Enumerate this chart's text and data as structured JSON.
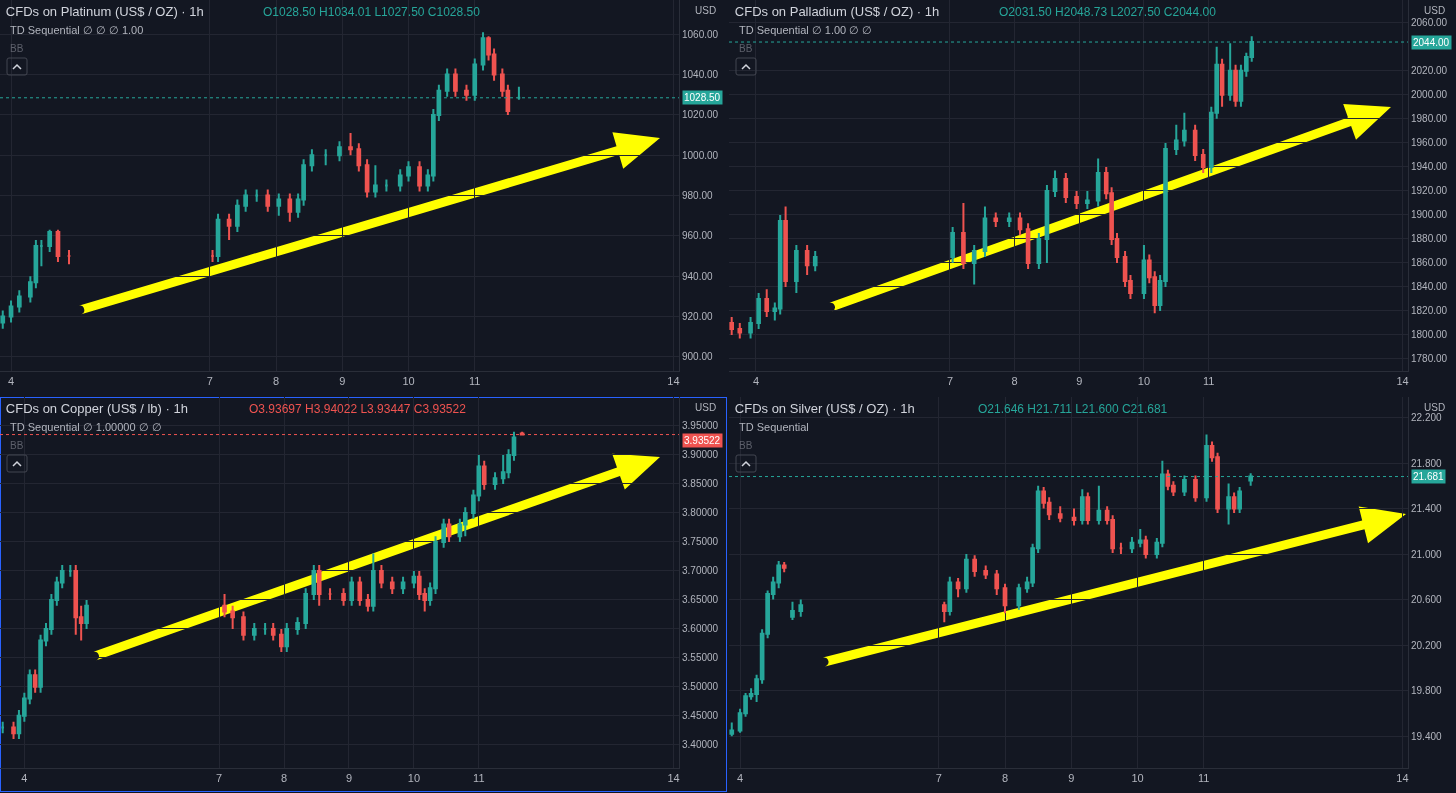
{
  "chart_data": [
    {
      "type": "candlestick",
      "title": "CFDs on Platinum (US$ / OZ) · 1h",
      "grid": true,
      "annotations": [
        "O1028.50 H1034.01 L1027.50 C1028.50",
        "TD Sequential ∅ ∅ ∅ 1.00",
        "BB",
        "USD"
      ],
      "x": [
        "--11-03T21:00",
        "--11-04T00:00",
        "--11-04T03:00",
        "--11-04T07:00",
        "--11-04T09:00",
        "--11-04T11:00",
        "--11-04T14:00",
        "--11-04T17:00",
        "--11-04T21:00",
        "--11-07T01:00",
        "--11-07T03:00",
        "--11-07T07:00",
        "--11-07T10:00",
        "--11-07T13:00",
        "--11-07T17:00",
        "--11-07T21:00",
        "--11-08T01:00",
        "--11-08T05:00",
        "--11-08T08:00",
        "--11-08T10:00",
        "--11-08T13:00",
        "--11-08T18:00",
        "--11-08T23:00",
        "--11-09T03:00",
        "--11-09T06:00",
        "--11-09T09:00",
        "--11-09T12:00",
        "--11-09T16:00",
        "--11-09T21:00",
        "--11-10T00:00",
        "--11-10T04:00",
        "--11-10T07:00",
        "--11-10T09:00",
        "--11-10T11:00",
        "--11-10T14:00",
        "--11-10T17:00",
        "--11-10T21:00",
        "--11-11T00:00",
        "--11-11T03:00",
        "--11-11T05:00",
        "--11-11T07:00",
        "--11-11T10:00",
        "--11-11T12:00",
        "--11-11T16:00"
      ],
      "ohlc": [
        [
          917,
          923,
          914,
          920
        ],
        [
          920,
          928,
          917,
          925
        ],
        [
          925,
          933,
          922,
          930
        ],
        [
          930,
          940,
          927,
          937
        ],
        [
          937,
          958,
          934,
          955
        ],
        [
          955,
          958,
          945,
          955
        ],
        [
          955,
          963,
          952,
          962
        ],
        [
          962,
          963,
          947,
          950
        ],
        [
          950,
          953,
          946,
          950
        ],
        [
          950,
          953,
          947,
          950
        ],
        [
          950,
          971,
          947,
          968
        ],
        [
          968,
          971,
          958,
          965
        ],
        [
          965,
          978,
          962,
          975
        ],
        [
          975,
          983,
          972,
          980
        ],
        [
          980,
          983,
          977,
          980
        ],
        [
          980,
          983,
          972,
          975
        ],
        [
          975,
          981,
          970,
          978
        ],
        [
          978,
          981,
          967,
          972
        ],
        [
          972,
          981,
          969,
          978
        ],
        [
          978,
          998,
          975,
          995
        ],
        [
          995,
          1003,
          992,
          1000
        ],
        [
          1000,
          1003,
          995,
          1000
        ],
        [
          1000,
          1007,
          997,
          1004
        ],
        [
          1004,
          1011,
          1000,
          1003
        ],
        [
          1003,
          1006,
          992,
          995
        ],
        [
          995,
          998,
          979,
          982
        ],
        [
          982,
          995,
          979,
          985
        ],
        [
          985,
          988,
          982,
          985
        ],
        [
          985,
          993,
          982,
          990
        ],
        [
          990,
          997,
          987,
          994
        ],
        [
          994,
          997,
          982,
          985
        ],
        [
          985,
          993,
          982,
          990
        ],
        [
          990,
          1023,
          987,
          1020
        ],
        [
          1020,
          1035,
          1017,
          1032
        ],
        [
          1032,
          1043,
          1029,
          1040
        ],
        [
          1040,
          1043,
          1029,
          1032
        ],
        [
          1032,
          1035,
          1027,
          1030
        ],
        [
          1030,
          1048,
          1027,
          1045
        ],
        [
          1045,
          1061,
          1042,
          1058
        ],
        [
          1058,
          1059,
          1047,
          1050
        ],
        [
          1050,
          1053,
          1037,
          1040
        ],
        [
          1040,
          1043,
          1029,
          1032
        ],
        [
          1032,
          1035,
          1020,
          1022
        ],
        [
          1028.5,
          1034.01,
          1027.5,
          1028.5
        ]
      ],
      "xlim": [
        "--11-03T20:00",
        "--11-14T02:00"
      ],
      "xticks": [
        {
          "value": "--11-04",
          "label": "4"
        },
        {
          "value": "--11-07",
          "label": "7"
        },
        {
          "value": "--11-08",
          "label": "8"
        },
        {
          "value": "--11-09",
          "label": "9"
        },
        {
          "value": "--11-10",
          "label": "10"
        },
        {
          "value": "--11-11",
          "label": "11"
        },
        {
          "value": "--11-14",
          "label": "14"
        }
      ],
      "ylim": [
        893,
        1077
      ],
      "yticks": [
        {
          "value": 900,
          "label": "900.00"
        },
        {
          "value": 920,
          "label": "920.00"
        },
        {
          "value": 940,
          "label": "940.00"
        },
        {
          "value": 960,
          "label": "960.00"
        },
        {
          "value": 980,
          "label": "980.00"
        },
        {
          "value": 1000,
          "label": "1000.00"
        },
        {
          "value": 1020,
          "label": "1020.00"
        },
        {
          "value": 1040,
          "label": "1040.00"
        },
        {
          "value": 1060,
          "label": "1060.00"
        }
      ],
      "ref_lines": [
        {
          "axis": "y",
          "value": 1028.5,
          "label": "1028.50",
          "color": "#26a69a",
          "line_style": "dotted"
        }
      ]
    },
    {
      "type": "candlestick",
      "title": "CFDs on Palladium (US$ / OZ) · 1h",
      "grid": true,
      "annotations": [
        "O2031.50 H2048.73 L2027.50 C2044.00",
        "TD Sequential ∅ 1.00 ∅ ∅",
        "BB",
        "USD"
      ],
      "x": [
        "--11-03T15:00",
        "--11-03T18:00",
        "--11-03T22:00",
        "--11-04T01:00",
        "--11-04T04:00",
        "--11-04T07:00",
        "--11-04T09:00",
        "--11-04T11:00",
        "--11-04T15:00",
        "--11-04T19:00",
        "--11-04T22:00",
        "--11-07T01:00",
        "--11-07T05:00",
        "--11-07T09:00",
        "--11-07T13:00",
        "--11-07T17:00",
        "--11-07T22:00",
        "--11-08T02:00",
        "--11-08T05:00",
        "--11-08T09:00",
        "--11-08T12:00",
        "--11-08T15:00",
        "--11-08T19:00",
        "--11-08T23:00",
        "--11-09T03:00",
        "--11-09T07:00",
        "--11-09T10:00",
        "--11-09T12:00",
        "--11-09T14:00",
        "--11-09T17:00",
        "--11-09T19:00",
        "--11-10T00:00",
        "--11-10T02:00",
        "--11-10T04:00",
        "--11-10T06:00",
        "--11-10T08:00",
        "--11-10T12:00",
        "--11-10T15:00",
        "--11-10T19:00",
        "--11-10T22:00",
        "--11-11T01:00",
        "--11-11T03:00",
        "--11-11T05:00",
        "--11-11T08:00",
        "--11-11T10:00",
        "--11-11T12:00",
        "--11-11T14:00",
        "--11-11T16:00"
      ],
      "ohlc": [
        [
          1810,
          1815,
          1800,
          1805
        ],
        [
          1805,
          1810,
          1797,
          1802
        ],
        [
          1802,
          1815,
          1797,
          1810
        ],
        [
          1810,
          1835,
          1805,
          1830
        ],
        [
          1830,
          1838,
          1815,
          1820
        ],
        [
          1820,
          1827,
          1812,
          1822
        ],
        [
          1822,
          1900,
          1817,
          1895
        ],
        [
          1895,
          1907,
          1840,
          1845
        ],
        [
          1845,
          1875,
          1835,
          1870
        ],
        [
          1870,
          1875,
          1850,
          1858
        ],
        [
          1858,
          1870,
          1853,
          1865
        ],
        [
          1865,
          1890,
          1860,
          1885
        ],
        [
          1885,
          1910,
          1855,
          1860
        ],
        [
          1860,
          1875,
          1842,
          1870
        ],
        [
          1870,
          1907,
          1865,
          1897
        ],
        [
          1897,
          1902,
          1890,
          1895
        ],
        [
          1895,
          1902,
          1890,
          1897
        ],
        [
          1897,
          1902,
          1883,
          1888
        ],
        [
          1888,
          1893,
          1855,
          1860
        ],
        [
          1860,
          1885,
          1855,
          1880
        ],
        [
          1880,
          1925,
          1860,
          1920
        ],
        [
          1920,
          1937,
          1915,
          1930
        ],
        [
          1930,
          1935,
          1910,
          1915
        ],
        [
          1915,
          1920,
          1905,
          1910
        ],
        [
          1910,
          1920,
          1905,
          1912
        ],
        [
          1912,
          1947,
          1907,
          1935
        ],
        [
          1935,
          1940,
          1913,
          1918
        ],
        [
          1918,
          1923,
          1875,
          1880
        ],
        [
          1880,
          1885,
          1860,
          1865
        ],
        [
          1865,
          1870,
          1840,
          1845
        ],
        [
          1845,
          1850,
          1830,
          1835
        ],
        [
          1835,
          1875,
          1830,
          1862
        ],
        [
          1862,
          1867,
          1843,
          1848
        ],
        [
          1848,
          1853,
          1818,
          1825
        ],
        [
          1825,
          1850,
          1820,
          1845
        ],
        [
          1845,
          1960,
          1840,
          1955
        ],
        [
          1955,
          1975,
          1950,
          1962
        ],
        [
          1962,
          1985,
          1957,
          1970
        ],
        [
          1970,
          1975,
          1945,
          1950
        ],
        [
          1950,
          1955,
          1935,
          1940
        ],
        [
          1940,
          1990,
          1935,
          1985
        ],
        [
          1985,
          2040,
          1980,
          2025
        ],
        [
          2025,
          2030,
          1990,
          2000
        ],
        [
          2000,
          2043,
          1995,
          2020
        ],
        [
          2020,
          2025,
          1990,
          1995
        ],
        [
          1995,
          2025,
          1990,
          2020
        ],
        [
          2020,
          2035,
          2015,
          2031.5
        ],
        [
          2031.5,
          2048.73,
          2027.5,
          2044
        ]
      ],
      "xlim": [
        "--11-03T14:00",
        "--11-14T02:00"
      ],
      "xticks": [
        {
          "value": "--11-04",
          "label": "4"
        },
        {
          "value": "--11-07",
          "label": "7"
        },
        {
          "value": "--11-08",
          "label": "8"
        },
        {
          "value": "--11-09",
          "label": "9"
        },
        {
          "value": "--11-10",
          "label": "10"
        },
        {
          "value": "--11-11",
          "label": "11"
        },
        {
          "value": "--11-14",
          "label": "14"
        }
      ],
      "ylim": [
        1770,
        2079
      ],
      "yticks": [
        {
          "value": 1780,
          "label": "1780.00"
        },
        {
          "value": 1800,
          "label": "1800.00"
        },
        {
          "value": 1820,
          "label": "1820.00"
        },
        {
          "value": 1840,
          "label": "1840.00"
        },
        {
          "value": 1860,
          "label": "1860.00"
        },
        {
          "value": 1880,
          "label": "1880.00"
        },
        {
          "value": 1900,
          "label": "1900.00"
        },
        {
          "value": 1920,
          "label": "1920.00"
        },
        {
          "value": 1940,
          "label": "1940.00"
        },
        {
          "value": 1960,
          "label": "1960.00"
        },
        {
          "value": 1980,
          "label": "1980.00"
        },
        {
          "value": 2000,
          "label": "2000.00"
        },
        {
          "value": 2020,
          "label": "2020.00"
        },
        {
          "value": 2060,
          "label": "2060.00"
        }
      ],
      "ref_lines": [
        {
          "axis": "y",
          "value": 2044,
          "label": "2044.00",
          "color": "#26a69a",
          "line_style": "dotted"
        }
      ]
    },
    {
      "type": "candlestick",
      "title": "CFDs on Copper (US$ / lb) · 1h",
      "grid": true,
      "annotations": [
        "O3.93697 H3.94022 L3.93447 C3.93522",
        "TD Sequential ∅ 1.00000 ∅ ∅",
        "BB",
        "USD"
      ],
      "x": [
        "--11-03T16:00",
        "--11-03T20:00",
        "--11-03T22:00",
        "--11-04T00:00",
        "--11-04T02:00",
        "--11-04T04:00",
        "--11-04T06:00",
        "--11-04T08:00",
        "--11-04T10:00",
        "--11-04T12:00",
        "--11-04T14:00",
        "--11-04T17:00",
        "--11-04T19:00",
        "--11-04T21:00",
        "--11-04T23:00",
        "--11-07T02:00",
        "--11-07T05:00",
        "--11-07T09:00",
        "--11-07T13:00",
        "--11-07T17:00",
        "--11-07T20:00",
        "--11-07T23:00",
        "--11-08T01:00",
        "--11-08T05:00",
        "--11-08T08:00",
        "--11-08T11:00",
        "--11-08T13:00",
        "--11-08T17:00",
        "--11-08T22:00",
        "--11-09T01:00",
        "--11-09T04:00",
        "--11-09T07:00",
        "--11-09T09:00",
        "--11-09T12:00",
        "--11-09T16:00",
        "--11-09T20:00",
        "--11-10T00:00",
        "--11-10T02:00",
        "--11-10T04:00",
        "--11-10T06:00",
        "--11-10T08:00",
        "--11-10T11:00",
        "--11-10T13:00",
        "--11-10T17:00",
        "--11-10T19:00",
        "--11-10T22:00",
        "--11-11T00:00",
        "--11-11T02:00",
        "--11-11T06:00",
        "--11-11T09:00",
        "--11-11T11:00",
        "--11-11T13:00",
        "--11-11T16:00"
      ],
      "ohlc": [
        [
          3.43,
          3.44,
          3.42,
          3.43
        ],
        [
          3.43,
          3.44,
          3.41,
          3.42
        ],
        [
          3.42,
          3.46,
          3.41,
          3.45
        ],
        [
          3.45,
          3.49,
          3.44,
          3.48
        ],
        [
          3.48,
          3.53,
          3.47,
          3.52
        ],
        [
          3.52,
          3.53,
          3.49,
          3.5
        ],
        [
          3.5,
          3.59,
          3.49,
          3.58
        ],
        [
          3.58,
          3.61,
          3.57,
          3.6
        ],
        [
          3.6,
          3.66,
          3.59,
          3.65
        ],
        [
          3.65,
          3.69,
          3.64,
          3.68
        ],
        [
          3.68,
          3.71,
          3.67,
          3.7
        ],
        [
          3.7,
          3.71,
          3.69,
          3.7
        ],
        [
          3.7,
          3.71,
          3.59,
          3.62
        ],
        [
          3.62,
          3.64,
          3.58,
          3.61
        ],
        [
          3.61,
          3.65,
          3.6,
          3.64
        ],
        [
          3.64,
          3.66,
          3.62,
          3.63
        ],
        [
          3.63,
          3.64,
          3.6,
          3.62
        ],
        [
          3.62,
          3.63,
          3.58,
          3.59
        ],
        [
          3.59,
          3.61,
          3.58,
          3.6
        ],
        [
          3.6,
          3.61,
          3.59,
          3.6
        ],
        [
          3.6,
          3.61,
          3.58,
          3.59
        ],
        [
          3.59,
          3.6,
          3.56,
          3.57
        ],
        [
          3.57,
          3.61,
          3.56,
          3.6
        ],
        [
          3.6,
          3.62,
          3.59,
          3.61
        ],
        [
          3.61,
          3.67,
          3.6,
          3.66
        ],
        [
          3.66,
          3.71,
          3.65,
          3.7
        ],
        [
          3.7,
          3.71,
          3.64,
          3.66
        ],
        [
          3.66,
          3.67,
          3.65,
          3.66
        ],
        [
          3.66,
          3.67,
          3.64,
          3.65
        ],
        [
          3.65,
          3.69,
          3.64,
          3.68
        ],
        [
          3.68,
          3.69,
          3.64,
          3.65
        ],
        [
          3.65,
          3.66,
          3.63,
          3.64
        ],
        [
          3.64,
          3.73,
          3.63,
          3.7
        ],
        [
          3.7,
          3.71,
          3.67,
          3.68
        ],
        [
          3.68,
          3.69,
          3.66,
          3.67
        ],
        [
          3.67,
          3.69,
          3.66,
          3.68
        ],
        [
          3.68,
          3.7,
          3.67,
          3.69
        ],
        [
          3.69,
          3.7,
          3.65,
          3.66
        ],
        [
          3.66,
          3.67,
          3.63,
          3.65
        ],
        [
          3.65,
          3.68,
          3.64,
          3.67
        ],
        [
          3.67,
          3.76,
          3.66,
          3.75
        ],
        [
          3.75,
          3.79,
          3.74,
          3.78
        ],
        [
          3.78,
          3.79,
          3.75,
          3.76
        ],
        [
          3.76,
          3.79,
          3.75,
          3.78
        ],
        [
          3.78,
          3.81,
          3.76,
          3.8
        ],
        [
          3.8,
          3.84,
          3.79,
          3.83
        ],
        [
          3.83,
          3.9,
          3.82,
          3.88
        ],
        [
          3.88,
          3.89,
          3.84,
          3.85
        ],
        [
          3.85,
          3.87,
          3.84,
          3.86
        ],
        [
          3.86,
          3.9,
          3.85,
          3.87
        ],
        [
          3.87,
          3.91,
          3.86,
          3.9
        ],
        [
          3.9,
          3.94,
          3.89,
          3.93
        ],
        [
          3.93697,
          3.94022,
          3.93447,
          3.93522
        ]
      ],
      "xlim": [
        "--11-03T15:00",
        "--11-14T02:00"
      ],
      "xticks": [
        {
          "value": "--11-04",
          "label": "4"
        },
        {
          "value": "--11-07",
          "label": "7"
        },
        {
          "value": "--11-08",
          "label": "8"
        },
        {
          "value": "--11-09",
          "label": "9"
        },
        {
          "value": "--11-10",
          "label": "10"
        },
        {
          "value": "--11-11",
          "label": "11"
        },
        {
          "value": "--11-14",
          "label": "14"
        }
      ],
      "ylim": [
        3.36,
        4.0
      ],
      "yticks": [
        {
          "value": 3.4,
          "label": "3.40000"
        },
        {
          "value": 3.45,
          "label": "3.45000"
        },
        {
          "value": 3.5,
          "label": "3.50000"
        },
        {
          "value": 3.55,
          "label": "3.55000"
        },
        {
          "value": 3.6,
          "label": "3.60000"
        },
        {
          "value": 3.65,
          "label": "3.65000"
        },
        {
          "value": 3.7,
          "label": "3.70000"
        },
        {
          "value": 3.75,
          "label": "3.75000"
        },
        {
          "value": 3.8,
          "label": "3.80000"
        },
        {
          "value": 3.85,
          "label": "3.85000"
        },
        {
          "value": 3.9,
          "label": "3.90000"
        },
        {
          "value": 3.95,
          "label": "3.95000"
        }
      ],
      "ref_lines": [
        {
          "axis": "y",
          "value": 3.93522,
          "label": "3.93522",
          "color": "#ef5350",
          "line_style": "dotted"
        }
      ]
    },
    {
      "type": "candlestick",
      "title": "CFDs on Silver (US$ / OZ) · 1h",
      "grid": true,
      "annotations": [
        "O21.646 H21.711 L21.600 C21.681",
        "TD Sequential",
        "BB",
        "USD"
      ],
      "x": [
        "--11-03T21:00",
        "--11-04T00:00",
        "--11-04T02:00",
        "--11-04T04:00",
        "--11-04T06:00",
        "--11-04T08:00",
        "--11-04T10:00",
        "--11-04T12:00",
        "--11-04T14:00",
        "--11-04T16:00",
        "--11-04T19:00",
        "--11-04T22:00",
        "--11-07T02:00",
        "--11-07T04:00",
        "--11-07T07:00",
        "--11-07T10:00",
        "--11-07T13:00",
        "--11-07T17:00",
        "--11-07T21:00",
        "--11-08T00:00",
        "--11-08T05:00",
        "--11-08T08:00",
        "--11-08T10:00",
        "--11-08T12:00",
        "--11-08T14:00",
        "--11-08T16:00",
        "--11-08T20:00",
        "--11-09T01:00",
        "--11-09T04:00",
        "--11-09T06:00",
        "--11-09T10:00",
        "--11-09T13:00",
        "--11-09T15:00",
        "--11-09T18:00",
        "--11-09T22:00",
        "--11-10T01:00",
        "--11-10T03:00",
        "--11-10T07:00",
        "--11-10T09:00",
        "--11-10T11:00",
        "--11-10T13:00",
        "--11-10T17:00",
        "--11-10T21:00",
        "--11-11T01:00",
        "--11-11T03:00",
        "--11-11T05:00",
        "--11-11T09:00",
        "--11-11T11:00",
        "--11-11T13:00",
        "--11-11T17:00"
      ],
      "ohlc": [
        [
          19.42,
          19.52,
          19.4,
          19.45
        ],
        [
          19.45,
          19.64,
          19.43,
          19.6
        ],
        [
          19.6,
          19.78,
          19.57,
          19.75
        ],
        [
          19.75,
          19.82,
          19.72,
          19.77
        ],
        [
          19.77,
          19.94,
          19.7,
          19.9
        ],
        [
          19.9,
          20.34,
          19.86,
          20.3
        ],
        [
          20.3,
          20.68,
          20.26,
          20.65
        ],
        [
          20.65,
          20.8,
          20.6,
          20.75
        ],
        [
          20.75,
          20.94,
          20.7,
          20.9
        ],
        [
          20.9,
          20.93,
          20.84,
          20.88
        ],
        [
          20.45,
          20.58,
          20.42,
          20.5
        ],
        [
          20.5,
          20.6,
          20.45,
          20.55
        ],
        [
          20.55,
          20.58,
          20.4,
          20.5
        ],
        [
          20.5,
          20.8,
          20.46,
          20.75
        ],
        [
          20.75,
          20.79,
          20.62,
          20.7
        ],
        [
          20.7,
          21.0,
          20.66,
          20.95
        ],
        [
          20.95,
          20.99,
          20.8,
          20.85
        ],
        [
          20.85,
          20.9,
          20.78,
          20.82
        ],
        [
          20.82,
          20.86,
          20.64,
          20.7
        ],
        [
          20.7,
          20.74,
          20.48,
          20.55
        ],
        [
          20.55,
          20.74,
          20.51,
          20.7
        ],
        [
          20.7,
          20.8,
          20.66,
          20.75
        ],
        [
          20.75,
          21.09,
          20.71,
          21.05
        ],
        [
          21.05,
          21.6,
          21.01,
          21.55
        ],
        [
          21.55,
          21.59,
          21.4,
          21.45
        ],
        [
          21.45,
          21.5,
          21.3,
          21.35
        ],
        [
          21.35,
          21.42,
          21.28,
          21.32
        ],
        [
          21.32,
          21.4,
          21.25,
          21.3
        ],
        [
          21.3,
          21.57,
          21.26,
          21.5
        ],
        [
          21.5,
          21.54,
          21.26,
          21.3
        ],
        [
          21.3,
          21.6,
          21.26,
          21.38
        ],
        [
          21.38,
          21.42,
          21.26,
          21.3
        ],
        [
          21.3,
          21.34,
          21.01,
          21.05
        ],
        [
          21.05,
          21.1,
          21.0,
          21.05
        ],
        [
          21.05,
          21.15,
          21.01,
          21.1
        ],
        [
          21.1,
          21.22,
          21.06,
          21.12
        ],
        [
          21.12,
          21.16,
          20.96,
          21.0
        ],
        [
          21.0,
          21.14,
          20.96,
          21.1
        ],
        [
          21.1,
          21.82,
          21.06,
          21.7
        ],
        [
          21.7,
          21.74,
          21.56,
          21.6
        ],
        [
          21.6,
          21.64,
          21.51,
          21.55
        ],
        [
          21.55,
          21.69,
          21.51,
          21.65
        ],
        [
          21.65,
          21.69,
          21.46,
          21.5
        ],
        [
          21.5,
          22.05,
          21.46,
          21.95
        ],
        [
          21.95,
          21.99,
          21.81,
          21.85
        ],
        [
          21.85,
          21.89,
          21.36,
          21.4
        ],
        [
          21.4,
          21.62,
          21.26,
          21.5
        ],
        [
          21.5,
          21.54,
          21.36,
          21.4
        ],
        [
          21.4,
          21.59,
          21.36,
          21.55
        ],
        [
          21.646,
          21.711,
          21.6,
          21.681
        ]
      ],
      "xlim": [
        "--11-03T20:00",
        "--11-14T02:00"
      ],
      "xticks": [
        {
          "value": "--11-04",
          "label": "4"
        },
        {
          "value": "--11-07",
          "label": "7"
        },
        {
          "value": "--11-08",
          "label": "8"
        },
        {
          "value": "--11-09",
          "label": "9"
        },
        {
          "value": "--11-10",
          "label": "10"
        },
        {
          "value": "--11-11",
          "label": "11"
        },
        {
          "value": "--11-14",
          "label": "14"
        }
      ],
      "ylim": [
        19.12,
        22.38
      ],
      "yticks": [
        {
          "value": 19.4,
          "label": "19.400"
        },
        {
          "value": 19.8,
          "label": "19.800"
        },
        {
          "value": 20.2,
          "label": "20.200"
        },
        {
          "value": 20.6,
          "label": "20.600"
        },
        {
          "value": 21.0,
          "label": "21.000"
        },
        {
          "value": 21.4,
          "label": "21.400"
        },
        {
          "value": 21.8,
          "label": "21.800"
        },
        {
          "value": 22.2,
          "label": "22.200"
        }
      ],
      "ref_lines": [
        {
          "axis": "y",
          "value": 21.681,
          "label": "21.681",
          "color": "#26a69a",
          "line_style": "dotted"
        }
      ]
    }
  ]
}
